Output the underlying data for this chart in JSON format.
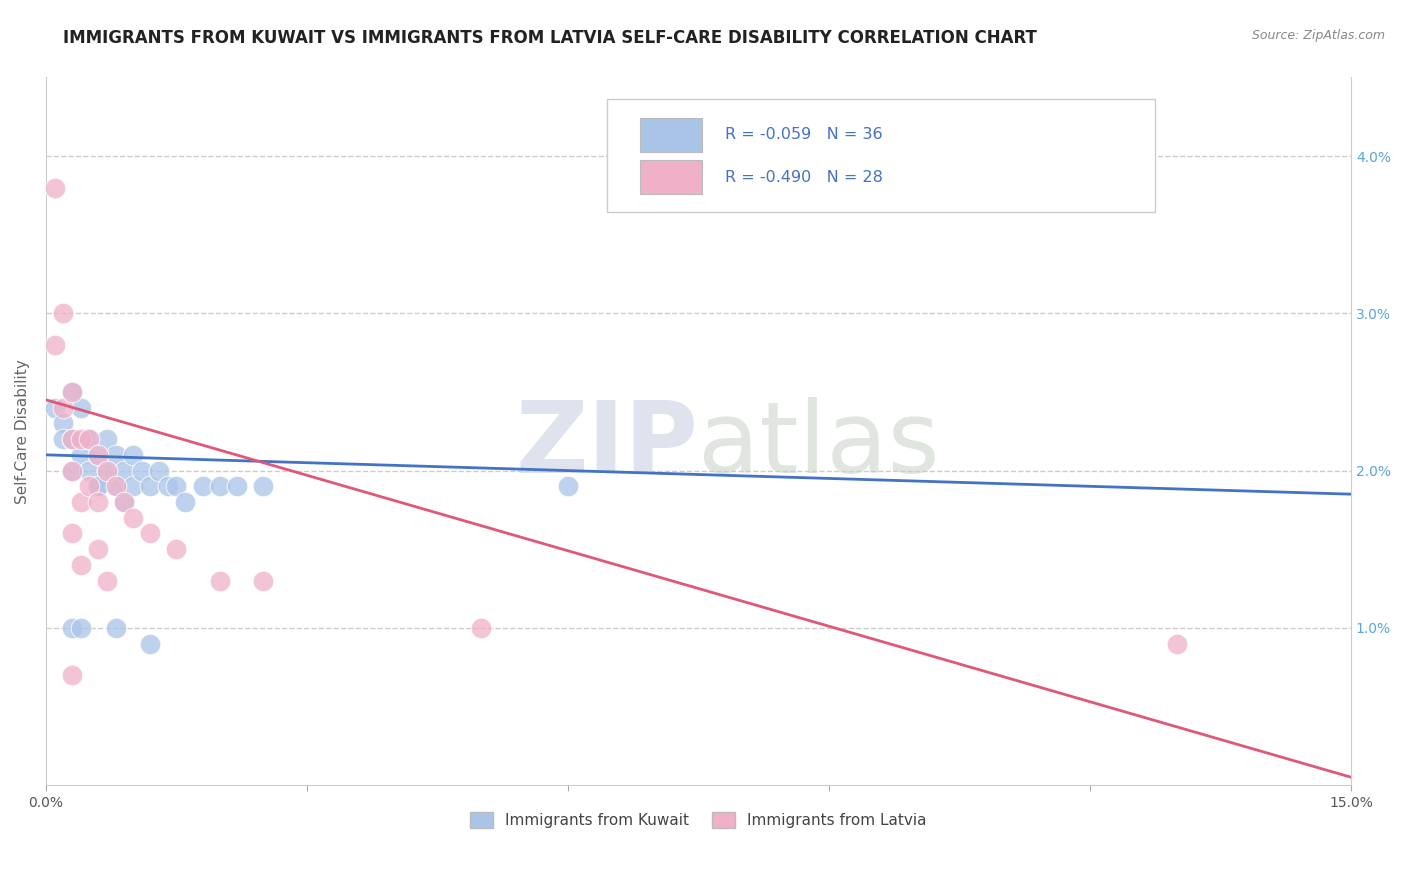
{
  "title": "IMMIGRANTS FROM KUWAIT VS IMMIGRANTS FROM LATVIA SELF-CARE DISABILITY CORRELATION CHART",
  "source": "Source: ZipAtlas.com",
  "ylabel": "Self-Care Disability",
  "xlim": [
    0.0,
    0.15
  ],
  "ylim": [
    0.0,
    0.045
  ],
  "plot_ylim": [
    0.0,
    0.04
  ],
  "xticks": [
    0.0,
    0.03,
    0.06,
    0.09,
    0.12,
    0.15
  ],
  "xticklabels": [
    "0.0%",
    "",
    "",
    "",
    "",
    "15.0%"
  ],
  "yticks_right": [
    0.01,
    0.02,
    0.03,
    0.04
  ],
  "yticklabels_right": [
    "1.0%",
    "2.0%",
    "3.0%",
    "4.0%"
  ],
  "kuwait_R": -0.059,
  "kuwait_N": 36,
  "latvia_R": -0.49,
  "latvia_N": 28,
  "kuwait_color": "#aac4e8",
  "latvia_color": "#f0b0c8",
  "kuwait_line_color": "#4472c4",
  "latvia_line_color": "#e05878",
  "kuwait_scatter_x": [
    0.001,
    0.002,
    0.002,
    0.003,
    0.003,
    0.003,
    0.004,
    0.004,
    0.005,
    0.005,
    0.006,
    0.006,
    0.007,
    0.007,
    0.008,
    0.008,
    0.009,
    0.009,
    0.01,
    0.01,
    0.011,
    0.012,
    0.013,
    0.014,
    0.015,
    0.016,
    0.018,
    0.02,
    0.022,
    0.025,
    0.006,
    0.06,
    0.003,
    0.004,
    0.008,
    0.012
  ],
  "kuwait_scatter_y": [
    0.024,
    0.023,
    0.022,
    0.025,
    0.022,
    0.02,
    0.024,
    0.021,
    0.022,
    0.02,
    0.021,
    0.019,
    0.022,
    0.02,
    0.021,
    0.019,
    0.02,
    0.018,
    0.021,
    0.019,
    0.02,
    0.019,
    0.02,
    0.019,
    0.019,
    0.018,
    0.019,
    0.019,
    0.019,
    0.019,
    0.019,
    0.019,
    0.01,
    0.01,
    0.01,
    0.009
  ],
  "latvia_scatter_x": [
    0.001,
    0.001,
    0.002,
    0.002,
    0.003,
    0.003,
    0.003,
    0.004,
    0.004,
    0.005,
    0.005,
    0.006,
    0.006,
    0.007,
    0.008,
    0.009,
    0.01,
    0.012,
    0.015,
    0.02,
    0.025,
    0.003,
    0.004,
    0.006,
    0.007,
    0.13,
    0.05,
    0.003
  ],
  "latvia_scatter_y": [
    0.038,
    0.028,
    0.03,
    0.024,
    0.025,
    0.022,
    0.02,
    0.022,
    0.018,
    0.022,
    0.019,
    0.021,
    0.018,
    0.02,
    0.019,
    0.018,
    0.017,
    0.016,
    0.015,
    0.013,
    0.013,
    0.016,
    0.014,
    0.015,
    0.013,
    0.009,
    0.01,
    0.007
  ],
  "watermark_zip": "ZIP",
  "watermark_atlas": "atlas",
  "background_color": "#ffffff",
  "grid_color": "#cccccc",
  "title_color": "#222222",
  "legend_label_color": "#4472c4",
  "title_fontsize": 12,
  "axis_label_fontsize": 11,
  "tick_fontsize": 10,
  "right_tick_color": "#5ba3d9"
}
